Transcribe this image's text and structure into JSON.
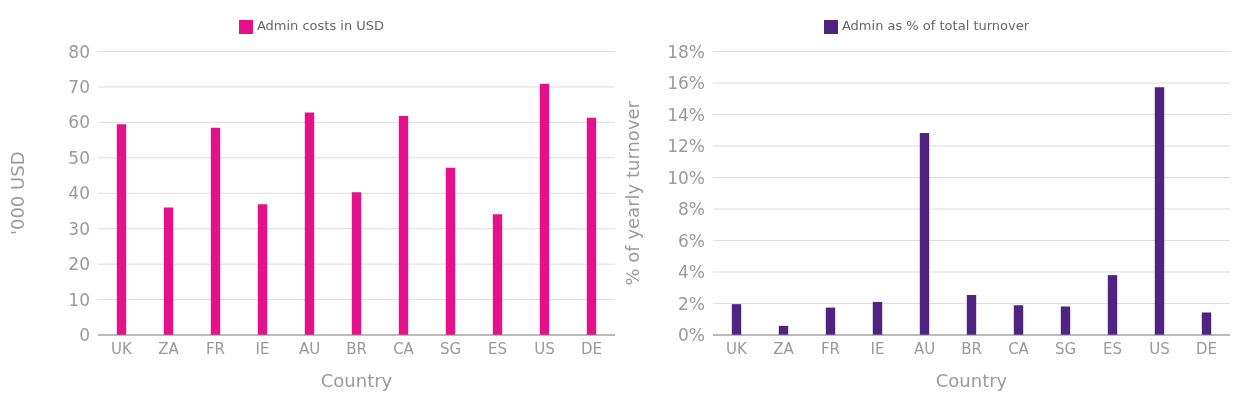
{
  "chart_data": [
    {
      "type": "bar",
      "categories": [
        "UK",
        "ZA",
        "FR",
        "IE",
        "AU",
        "BR",
        "CA",
        "SG",
        "ES",
        "US",
        "DE"
      ],
      "xlabel": "Country",
      "ylabel": "'000 USD",
      "series": [
        {
          "name": "Admin costs in USD",
          "color": "#e5118b",
          "values": [
            59.5,
            36.0,
            58.5,
            36.9,
            62.8,
            40.3,
            61.8,
            47.2,
            34.1,
            70.9,
            61.3
          ]
        }
      ],
      "ylim": [
        0,
        80
      ],
      "yticks": [
        0,
        10,
        20,
        30,
        40,
        50,
        60,
        70,
        80
      ],
      "grid": "y",
      "legend": "top"
    },
    {
      "type": "bar",
      "categories": [
        "UK",
        "ZA",
        "FR",
        "IE",
        "AU",
        "BR",
        "CA",
        "SG",
        "ES",
        "US",
        "DE"
      ],
      "xlabel": "Country",
      "ylabel": "% of yearly turnover",
      "series": [
        {
          "name": "Admin as % of total turnover",
          "color": "#4f237f",
          "values": [
            1.96,
            0.58,
            1.74,
            2.1,
            12.82,
            2.54,
            1.89,
            1.81,
            3.8,
            15.73,
            1.43
          ]
        }
      ],
      "ylim": [
        0,
        18
      ],
      "yticks": [
        {
          "value": 0,
          "label": "0%"
        },
        {
          "value": 2,
          "label": "2%"
        },
        {
          "value": 4,
          "label": "4%"
        },
        {
          "value": 6,
          "label": "6%"
        },
        {
          "value": 8,
          "label": "8%"
        },
        {
          "value": 10,
          "label": "10%"
        },
        {
          "value": 12,
          "label": "12%"
        },
        {
          "value": 14,
          "label": "14%"
        },
        {
          "value": 16,
          "label": "16%"
        },
        {
          "value": 18,
          "label": "18%"
        }
      ],
      "grid": "y",
      "legend": "top"
    }
  ]
}
